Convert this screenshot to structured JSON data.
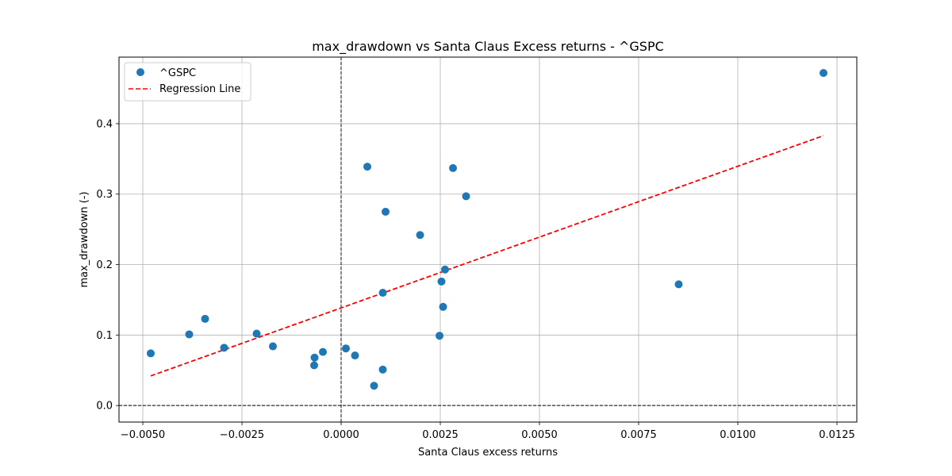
{
  "chart_data": {
    "type": "scatter",
    "title": "max_drawdown vs Santa Claus Excess returns - ^GSPC",
    "xlabel": "Santa Claus excess returns",
    "ylabel": "max_drawdown (-)",
    "xlim": [
      -0.0056,
      0.013
    ],
    "ylim": [
      -0.0235,
      0.4945
    ],
    "xticks": [
      -0.005,
      -0.0025,
      0.0,
      0.0025,
      0.005,
      0.0075,
      0.01,
      0.0125
    ],
    "xtick_labels": [
      "−0.0050",
      "−0.0025",
      "0.0000",
      "0.0025",
      "0.0050",
      "0.0075",
      "0.0100",
      "0.0125"
    ],
    "yticks": [
      0.0,
      0.1,
      0.2,
      0.3,
      0.4
    ],
    "ytick_labels": [
      "0.0",
      "0.1",
      "0.2",
      "0.3",
      "0.4"
    ],
    "grid": true,
    "legend_position": "top-left",
    "reference_lines": {
      "x": 0.0,
      "y": 0.0,
      "color": "#000000",
      "style": "dashed"
    },
    "series": [
      {
        "name": "^GSPC",
        "kind": "scatter",
        "color": "#1f77b4",
        "points": [
          [
            -0.0048,
            0.074
          ],
          [
            -0.00383,
            0.101
          ],
          [
            -0.00343,
            0.123
          ],
          [
            -0.00295,
            0.082
          ],
          [
            -0.00213,
            0.102
          ],
          [
            -0.00172,
            0.084
          ],
          [
            -0.00067,
            0.068
          ],
          [
            -0.00068,
            0.057
          ],
          [
            -0.00046,
            0.076
          ],
          [
            0.00012,
            0.081
          ],
          [
            0.00035,
            0.071
          ],
          [
            0.00066,
            0.339
          ],
          [
            0.00083,
            0.028
          ],
          [
            0.00105,
            0.16
          ],
          [
            0.00105,
            0.051
          ],
          [
            0.00112,
            0.275
          ],
          [
            0.00199,
            0.242
          ],
          [
            0.00248,
            0.099
          ],
          [
            0.00253,
            0.176
          ],
          [
            0.00257,
            0.14
          ],
          [
            0.00262,
            0.193
          ],
          [
            0.00282,
            0.337
          ],
          [
            0.00315,
            0.297
          ],
          [
            0.00851,
            0.172
          ],
          [
            0.01216,
            0.472
          ]
        ]
      },
      {
        "name": "Regression Line",
        "kind": "line",
        "color": "#ff0000",
        "style": "dashed",
        "x": [
          -0.0048,
          0.01216
        ],
        "y": [
          0.042,
          0.383
        ]
      }
    ]
  }
}
